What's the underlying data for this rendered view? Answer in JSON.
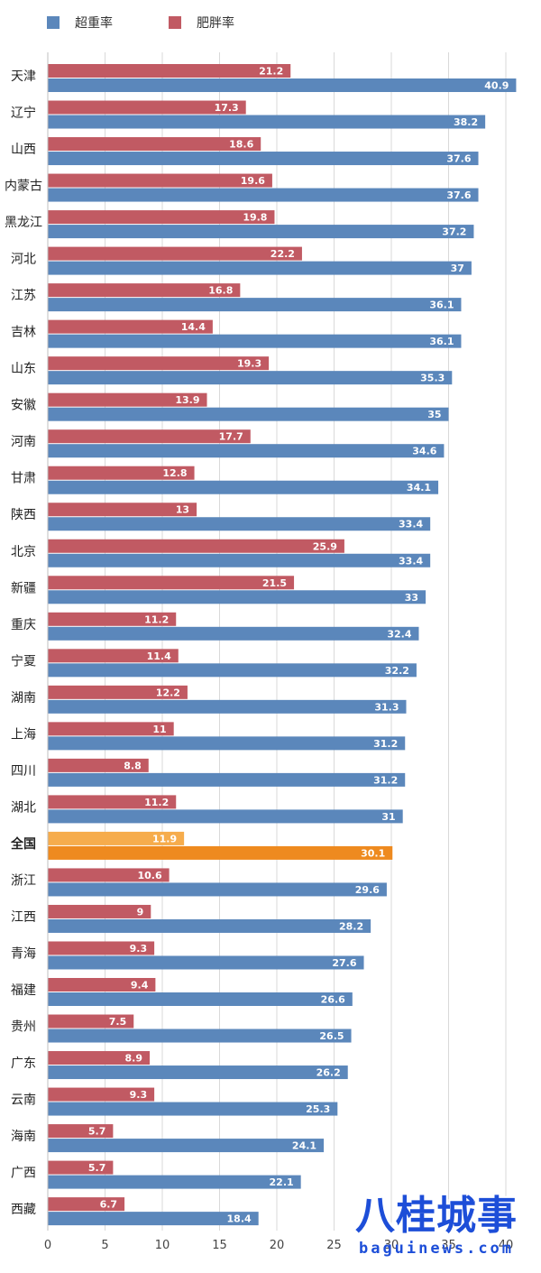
{
  "chart_data": {
    "type": "bar",
    "orientation": "horizontal",
    "legend": {
      "placement": "top-left"
    },
    "xlim": [
      0,
      42
    ],
    "xticks": [
      0,
      5,
      10,
      15,
      20,
      25,
      30,
      35,
      40
    ],
    "grid": true,
    "categories": [
      "天津",
      "辽宁",
      "山西",
      "内蒙古",
      "黑龙江",
      "河北",
      "江苏",
      "吉林",
      "山东",
      "安徽",
      "河南",
      "甘肃",
      "陕西",
      "北京",
      "新疆",
      "重庆",
      "宁夏",
      "湖南",
      "上海",
      "四川",
      "湖北",
      "全国",
      "浙江",
      "江西",
      "青海",
      "福建",
      "贵州",
      "广东",
      "云南",
      "海南",
      "广西",
      "西藏"
    ],
    "highlight_category": "全国",
    "series": [
      {
        "name": "超重率",
        "color": "#5b87bb",
        "highlight_color": "#ee8a1f",
        "values": [
          40.9,
          38.2,
          37.6,
          37.6,
          37.2,
          37,
          36.1,
          36.1,
          35.3,
          35,
          34.6,
          34.1,
          33.4,
          33.4,
          33,
          32.4,
          32.2,
          31.3,
          31.2,
          31.2,
          31,
          30.1,
          29.6,
          28.2,
          27.6,
          26.6,
          26.5,
          26.2,
          25.3,
          24.1,
          22.1,
          18.4
        ]
      },
      {
        "name": "肥胖率",
        "color": "#c15a63",
        "highlight_color": "#f6ac4c",
        "values": [
          21.2,
          17.3,
          18.6,
          19.6,
          19.8,
          22.2,
          16.8,
          14.4,
          19.3,
          13.9,
          17.7,
          12.8,
          13,
          25.9,
          21.5,
          11.2,
          11.4,
          12.2,
          11,
          8.8,
          11.2,
          11.9,
          10.6,
          9,
          9.3,
          9.4,
          7.5,
          8.9,
          9.3,
          5.7,
          5.7,
          6.7
        ]
      }
    ]
  },
  "watermark": {
    "title": "八桂城事",
    "url": "baguinews.com"
  }
}
